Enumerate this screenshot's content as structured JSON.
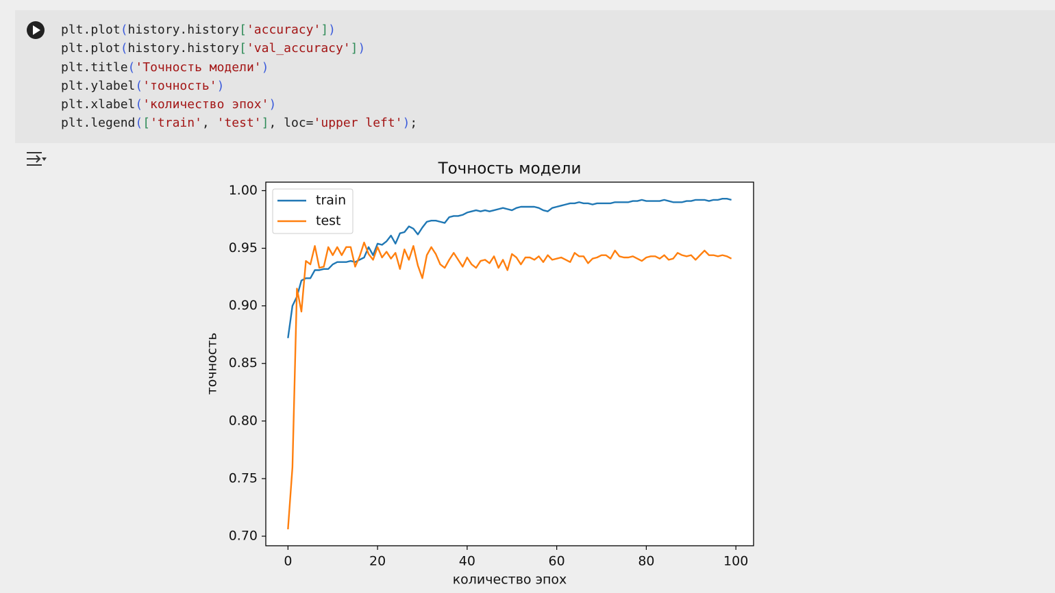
{
  "code_cell": {
    "lines": [
      [
        {
          "text": "plt.plot",
          "color": "#1f1f1f"
        },
        {
          "text": "(",
          "color": "#3b5bdb"
        },
        {
          "text": "history.history",
          "color": "#1f1f1f"
        },
        {
          "text": "[",
          "color": "#2e8b57"
        },
        {
          "text": "'accuracy'",
          "color": "#a31515"
        },
        {
          "text": "]",
          "color": "#2e8b57"
        },
        {
          "text": ")",
          "color": "#3b5bdb"
        }
      ],
      [
        {
          "text": "plt.plot",
          "color": "#1f1f1f"
        },
        {
          "text": "(",
          "color": "#3b5bdb"
        },
        {
          "text": "history.history",
          "color": "#1f1f1f"
        },
        {
          "text": "[",
          "color": "#2e8b57"
        },
        {
          "text": "'val_accuracy'",
          "color": "#a31515"
        },
        {
          "text": "]",
          "color": "#2e8b57"
        },
        {
          "text": ")",
          "color": "#3b5bdb"
        }
      ],
      [
        {
          "text": "plt.title",
          "color": "#1f1f1f"
        },
        {
          "text": "(",
          "color": "#3b5bdb"
        },
        {
          "text": "'Точность модели'",
          "color": "#a31515"
        },
        {
          "text": ")",
          "color": "#3b5bdb"
        }
      ],
      [
        {
          "text": "plt.ylabel",
          "color": "#1f1f1f"
        },
        {
          "text": "(",
          "color": "#3b5bdb"
        },
        {
          "text": "'точность'",
          "color": "#a31515"
        },
        {
          "text": ")",
          "color": "#3b5bdb"
        }
      ],
      [
        {
          "text": "plt.xlabel",
          "color": "#1f1f1f"
        },
        {
          "text": "(",
          "color": "#3b5bdb"
        },
        {
          "text": "'количество эпох'",
          "color": "#a31515"
        },
        {
          "text": ")",
          "color": "#3b5bdb"
        }
      ],
      [
        {
          "text": "plt.legend",
          "color": "#1f1f1f"
        },
        {
          "text": "(",
          "color": "#3b5bdb"
        },
        {
          "text": "[",
          "color": "#2e8b57"
        },
        {
          "text": "'train'",
          "color": "#a31515"
        },
        {
          "text": ", ",
          "color": "#1f1f1f"
        },
        {
          "text": "'test'",
          "color": "#a31515"
        },
        {
          "text": "]",
          "color": "#2e8b57"
        },
        {
          "text": ", loc=",
          "color": "#1f1f1f"
        },
        {
          "text": "'upper left'",
          "color": "#a31515"
        },
        {
          "text": ")",
          "color": "#3b5bdb"
        },
        {
          "text": ";",
          "color": "#1f1f1f"
        }
      ]
    ]
  },
  "chart_data": {
    "type": "line",
    "title": "Точность модели",
    "x_label": "количество эпох",
    "y_label": "точность",
    "x": [
      0,
      1,
      2,
      3,
      4,
      5,
      6,
      7,
      8,
      9,
      10,
      11,
      12,
      13,
      14,
      15,
      16,
      17,
      18,
      19,
      20,
      21,
      22,
      23,
      24,
      25,
      26,
      27,
      28,
      29,
      30,
      31,
      32,
      33,
      34,
      35,
      36,
      37,
      38,
      39,
      40,
      41,
      42,
      43,
      44,
      45,
      46,
      47,
      48,
      49,
      50,
      51,
      52,
      53,
      54,
      55,
      56,
      57,
      58,
      59,
      60,
      61,
      62,
      63,
      64,
      65,
      66,
      67,
      68,
      69,
      70,
      71,
      72,
      73,
      74,
      75,
      76,
      77,
      78,
      79,
      80,
      81,
      82,
      83,
      84,
      85,
      86,
      87,
      88,
      89,
      90,
      91,
      92,
      93,
      94,
      95,
      96,
      97,
      98,
      99
    ],
    "series": [
      {
        "name": "train",
        "color": "#1f77b4",
        "values": [
          0.872,
          0.9,
          0.908,
          0.922,
          0.924,
          0.924,
          0.931,
          0.931,
          0.932,
          0.932,
          0.936,
          0.938,
          0.938,
          0.938,
          0.939,
          0.938,
          0.94,
          0.942,
          0.951,
          0.944,
          0.954,
          0.953,
          0.956,
          0.961,
          0.954,
          0.963,
          0.964,
          0.969,
          0.967,
          0.962,
          0.968,
          0.973,
          0.974,
          0.974,
          0.973,
          0.972,
          0.977,
          0.978,
          0.978,
          0.979,
          0.981,
          0.982,
          0.983,
          0.982,
          0.983,
          0.982,
          0.983,
          0.984,
          0.985,
          0.984,
          0.983,
          0.985,
          0.986,
          0.986,
          0.986,
          0.986,
          0.985,
          0.983,
          0.982,
          0.985,
          0.986,
          0.987,
          0.988,
          0.989,
          0.989,
          0.99,
          0.989,
          0.989,
          0.988,
          0.989,
          0.989,
          0.989,
          0.989,
          0.99,
          0.99,
          0.99,
          0.99,
          0.991,
          0.991,
          0.992,
          0.991,
          0.991,
          0.991,
          0.991,
          0.992,
          0.991,
          0.99,
          0.99,
          0.99,
          0.991,
          0.991,
          0.992,
          0.992,
          0.992,
          0.991,
          0.992,
          0.992,
          0.993,
          0.993,
          0.992
        ]
      },
      {
        "name": "test",
        "color": "#ff7f0e",
        "values": [
          0.706,
          0.76,
          0.915,
          0.895,
          0.939,
          0.936,
          0.952,
          0.933,
          0.934,
          0.951,
          0.944,
          0.951,
          0.944,
          0.951,
          0.951,
          0.934,
          0.943,
          0.955,
          0.945,
          0.94,
          0.951,
          0.942,
          0.947,
          0.941,
          0.946,
          0.932,
          0.949,
          0.94,
          0.952,
          0.935,
          0.924,
          0.944,
          0.951,
          0.945,
          0.936,
          0.933,
          0.94,
          0.946,
          0.94,
          0.934,
          0.942,
          0.936,
          0.933,
          0.939,
          0.94,
          0.937,
          0.943,
          0.933,
          0.94,
          0.931,
          0.945,
          0.942,
          0.936,
          0.942,
          0.942,
          0.94,
          0.943,
          0.938,
          0.944,
          0.94,
          0.941,
          0.942,
          0.94,
          0.938,
          0.946,
          0.943,
          0.943,
          0.937,
          0.941,
          0.942,
          0.944,
          0.944,
          0.941,
          0.948,
          0.943,
          0.942,
          0.942,
          0.943,
          0.941,
          0.939,
          0.942,
          0.943,
          0.943,
          0.941,
          0.944,
          0.94,
          0.941,
          0.946,
          0.944,
          0.943,
          0.944,
          0.94,
          0.944,
          0.948,
          0.944,
          0.944,
          0.943,
          0.944,
          0.943,
          0.941
        ]
      }
    ],
    "xlim": [
      -4.95,
      103.95
    ],
    "xticks": [
      0,
      20,
      40,
      60,
      80,
      100
    ],
    "ylim": [
      0.6917,
      1.0074
    ],
    "yticks": [
      {
        "value": 0.7,
        "label": "0.70"
      },
      {
        "value": 0.75,
        "label": "0.75"
      },
      {
        "value": 0.8,
        "label": "0.80"
      },
      {
        "value": 0.85,
        "label": "0.85"
      },
      {
        "value": 0.9,
        "label": "0.90"
      },
      {
        "value": 0.95,
        "label": "0.95"
      },
      {
        "value": 1.0,
        "label": "1.00"
      }
    ],
    "legend": "upper left",
    "grid": false
  }
}
